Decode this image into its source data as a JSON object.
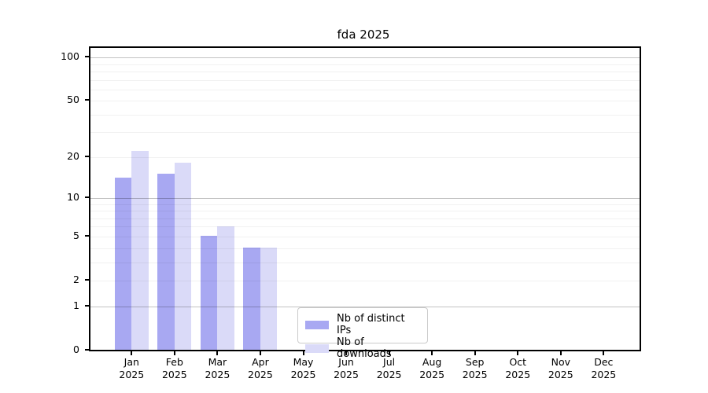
{
  "chart_data": {
    "type": "bar",
    "title": "fda 2025",
    "categories": [
      "Jan",
      "Feb",
      "Mar",
      "Apr",
      "May",
      "Jun",
      "Jul",
      "Aug",
      "Sep",
      "Oct",
      "Nov",
      "Dec"
    ],
    "year_label": "2025",
    "series": [
      {
        "name": "Nb of distinct IPs",
        "color": "#a8a8f2",
        "values": [
          14,
          15,
          5,
          4,
          0,
          0,
          0,
          0,
          0,
          0,
          0,
          0
        ]
      },
      {
        "name": "Nb of downloads",
        "color": "#dadaf8",
        "values": [
          22,
          18,
          6,
          4,
          0,
          0,
          0,
          0,
          0,
          0,
          0,
          0
        ]
      }
    ],
    "yscale": "log1p",
    "ylim": [
      0,
      100
    ],
    "ytick_values": [
      100,
      50,
      20,
      10,
      5,
      2,
      1,
      0
    ],
    "major_gridlines": [
      1,
      10,
      100
    ],
    "minor_gridlines": [
      2,
      3,
      4,
      5,
      6,
      7,
      8,
      9,
      20,
      30,
      40,
      50,
      60,
      70,
      80,
      90
    ],
    "grid": "horizontal",
    "legend_position": "inside-bottom-center-right",
    "colors": {
      "distinct_ips": "#a8a8f2",
      "downloads": "#dadaf8",
      "major_grid": "#c7c7c7",
      "minor_grid": "#f0f0f0",
      "spine": "#000000"
    }
  }
}
